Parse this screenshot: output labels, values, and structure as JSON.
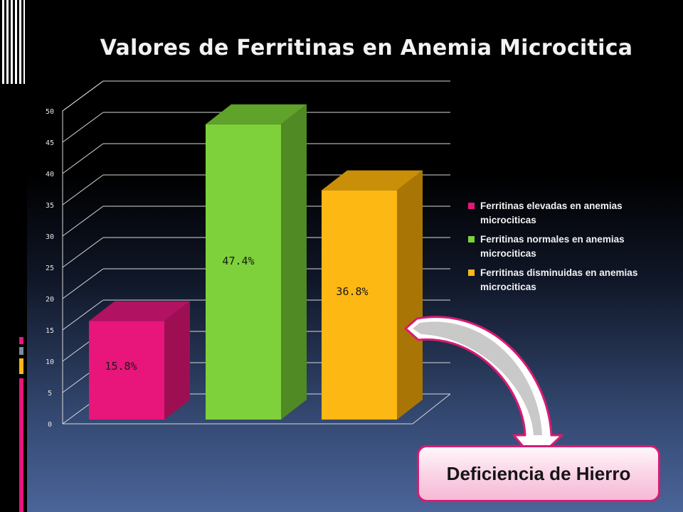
{
  "colors": {
    "pink": "#e8157a",
    "green": "#7ed13a",
    "gold": "#fdb813",
    "callout_border": "#d81b72"
  },
  "chart_data": {
    "type": "bar",
    "title": "Valores de Ferritinas en Anemia Microcitica",
    "categories": [
      "Ferritinas elevadas en anemias microciticas",
      "Ferritinas normales en anemias microciticas",
      "Ferritinas disminuidas en anemias microciticas"
    ],
    "values": [
      15.8,
      47.4,
      36.8
    ],
    "data_labels": [
      "15.8%",
      "47.4%",
      "36.8%"
    ],
    "legend": [
      {
        "label": "Ferritinas elevadas en anemias microciticas",
        "color": "#e8157a"
      },
      {
        "label": "Ferritinas normales en anemias microciticas",
        "color": "#7ed13a"
      },
      {
        "label": "Ferritinas disminuidas en anemias microciticas",
        "color": "#fdb813"
      }
    ],
    "yticks": [
      "0",
      "5",
      "10",
      "15",
      "20",
      "25",
      "30",
      "35",
      "40",
      "45",
      "50"
    ],
    "ylim": [
      0,
      50
    ],
    "grid": true,
    "legend_position": "right",
    "style": "3d"
  },
  "callout": {
    "text": "Deficiencia de Hierro"
  }
}
